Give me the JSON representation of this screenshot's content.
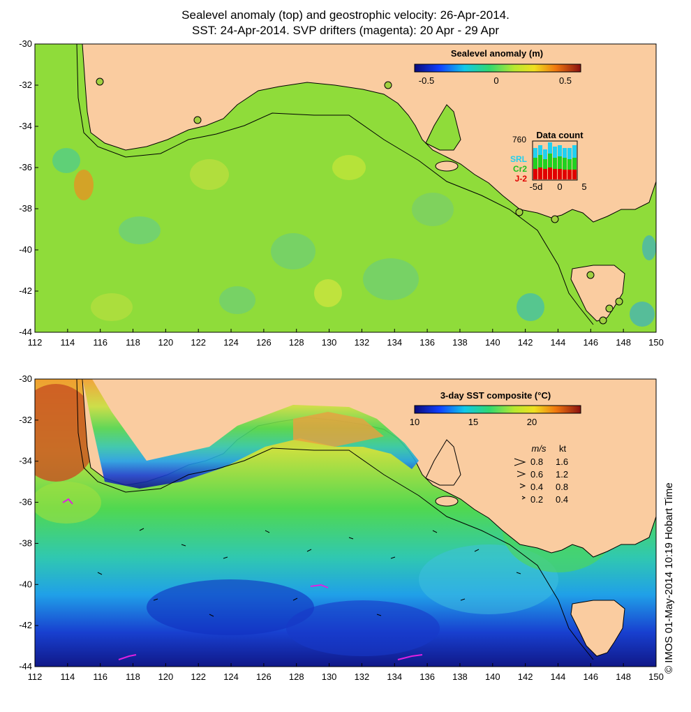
{
  "title_line1": "Sealevel anomaly (top) and geostrophic velocity: 26-Apr-2014.",
  "title_line2": "SST: 24-Apr-2014. SVP drifters (magenta): 20 Apr - 29 Apr",
  "credit": "© IMOS 01-May-2014 10:19 Hobart Time",
  "axes": {
    "x_ticks": [
      "112",
      "114",
      "116",
      "118",
      "120",
      "122",
      "124",
      "126",
      "128",
      "130",
      "132",
      "134",
      "136",
      "138",
      "140",
      "142",
      "144",
      "146",
      "148",
      "150"
    ],
    "y_ticks": [
      "-30",
      "-32",
      "-34",
      "-36",
      "-38",
      "-40",
      "-42",
      "-44"
    ]
  },
  "top_panel": {
    "colorbar_title": "Sealevel anomaly (m)",
    "colorbar_ticks": [
      "-0.5",
      "0",
      "0.5"
    ],
    "data_count": {
      "title": "Data count",
      "max_label": "760",
      "sat1": "SRL",
      "sat2": "Cr2",
      "sat3": "J-2",
      "x_labels": [
        "-5d",
        "0",
        "5"
      ]
    }
  },
  "bottom_panel": {
    "colorbar_title": "3-day SST composite (°C)",
    "colorbar_ticks": [
      "10",
      "15",
      "20"
    ],
    "vector_legend": {
      "header_ms": "m/s",
      "header_kt": "kt",
      "rows": [
        {
          "ms": "0.8",
          "kt": "1.6"
        },
        {
          "ms": "0.6",
          "kt": "1.2"
        },
        {
          "ms": "0.4",
          "kt": "0.8"
        },
        {
          "ms": "0.2",
          "kt": "0.4"
        }
      ]
    }
  },
  "colors": {
    "land": "#FACCA0",
    "sla_field": "#8FDC3A",
    "coast": "#000000"
  }
}
